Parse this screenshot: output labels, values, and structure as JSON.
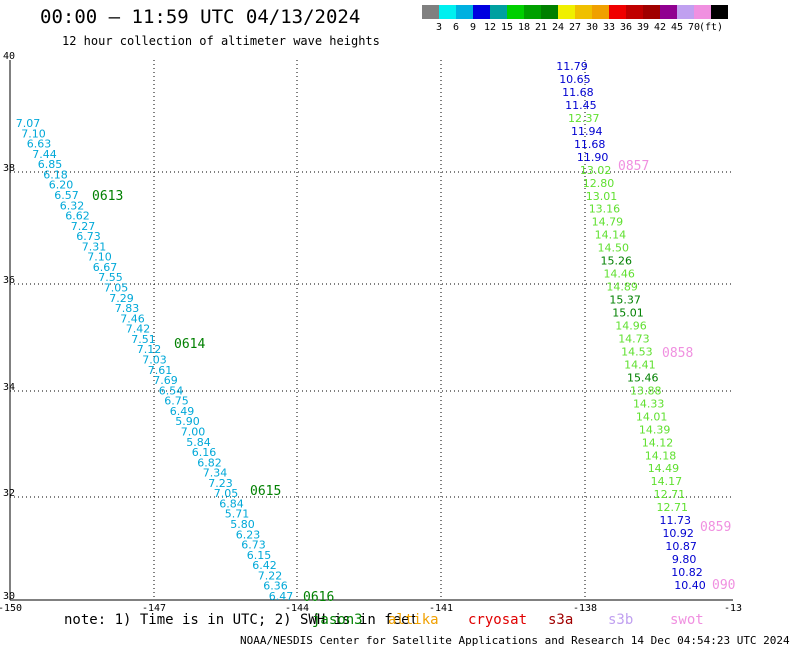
{
  "title": "00:00 – 11:59 UTC 04/13/2024",
  "subtitle": "12 hour collection of altimeter wave heights",
  "legend": {
    "colors": [
      "#808080",
      "#00f0f0",
      "#00b0e0",
      "#0000e0",
      "#00a0a0",
      "#00d000",
      "#00a000",
      "#008000",
      "#f0f000",
      "#f0c000",
      "#f0a000",
      "#f00000",
      "#c00000",
      "#a00000",
      "#900090",
      "#c0a0f0",
      "#f090e0",
      "#000000"
    ],
    "labels": [
      "3",
      "6",
      "9",
      "12",
      "15",
      "18",
      "21",
      "24",
      "27",
      "30",
      "33",
      "36",
      "39",
      "42",
      "45",
      "70",
      "(ft)"
    ]
  },
  "axes": {
    "x_ticks": [
      "-150",
      "-147",
      "-144",
      "-141",
      "-138",
      "-13"
    ],
    "y_ticks": [
      "40",
      "38",
      "36",
      "34",
      "32",
      "30"
    ]
  },
  "tracks": [
    {
      "color": "#00a8d8",
      "values": [
        "7.07",
        "7.10",
        "6.63",
        "7.44",
        "6.85",
        "6.18",
        "6.20",
        "6.57",
        "6.32",
        "6.62",
        "7.27",
        "6.73",
        "7.31",
        "7.10",
        "6.67",
        "7.55",
        "7.05",
        "7.29",
        "7.83",
        "7.46",
        "7.42",
        "7.51",
        "7.12",
        "7.03",
        "7.61",
        "7.69",
        "6.54",
        "6.75",
        "6.49",
        "5.90",
        "7.00",
        "5.84",
        "6.16",
        "6.82",
        "7.34",
        "7.23",
        "7.05",
        "6.84",
        "5.71",
        "5.80",
        "6.23",
        "6.73",
        "6.15",
        "6.42",
        "7.22",
        "6.36",
        "6.47"
      ]
    },
    {
      "color": "#0000d0",
      "values": [
        "11.79",
        "10.65",
        "11.68",
        "11.45"
      ]
    },
    {
      "color": "#60e030",
      "values": [
        "12.37"
      ]
    },
    {
      "color": "#0000d0",
      "values": [
        "11.94",
        "11.68",
        "11.90"
      ]
    },
    {
      "color": "#60e030",
      "values": [
        "13.02",
        "12.80",
        "13.01",
        "13.16",
        "14.79",
        "14.14",
        "14.50"
      ]
    },
    {
      "color": "#008000",
      "values": [
        "15.26"
      ]
    },
    {
      "color": "#60e030",
      "values": [
        "14.46",
        "14.89"
      ]
    },
    {
      "color": "#008000",
      "values": [
        "15.37",
        "15.01"
      ]
    },
    {
      "color": "#60e030",
      "values": [
        "14.96",
        "14.73",
        "14.53",
        "14.41"
      ]
    },
    {
      "color": "#008000",
      "values": [
        "15.46"
      ]
    },
    {
      "color": "#60e030",
      "values": [
        "13.88",
        "14.33",
        "14.01",
        "14.39",
        "14.12",
        "14.18",
        "14.49",
        "14.17",
        "12.71",
        "12.71"
      ]
    },
    {
      "color": "#0000d0",
      "values": [
        "11.73",
        "10.92",
        "10.87",
        "9.80",
        "10.82",
        "10.40"
      ]
    }
  ],
  "time_labels": [
    {
      "text": "0613",
      "color": "#008000"
    },
    {
      "text": "0614",
      "color": "#008000"
    },
    {
      "text": "0615",
      "color": "#008000"
    },
    {
      "text": "0616",
      "color": "#008000"
    },
    {
      "text": "0857",
      "color": "#f090e0"
    },
    {
      "text": "0858",
      "color": "#f090e0"
    },
    {
      "text": "0859",
      "color": "#f090e0"
    },
    {
      "text": "090",
      "color": "#f090e0"
    }
  ],
  "note": "note: 1) Time is in UTC; 2) SWH is in feet",
  "satellites": [
    {
      "name": "jason3",
      "color": "#008000"
    },
    {
      "name": "altika",
      "color": "#f0a000"
    },
    {
      "name": "cryosat",
      "color": "#e00000"
    },
    {
      "name": "s3a",
      "color": "#a00000"
    },
    {
      "name": "s3b",
      "color": "#c0a0f0"
    },
    {
      "name": "swot",
      "color": "#f090e0"
    }
  ],
  "footer": "NOAA/NESDIS Center for Satellite Applications and Research   14 Dec 04:54:23 UTC 2024"
}
